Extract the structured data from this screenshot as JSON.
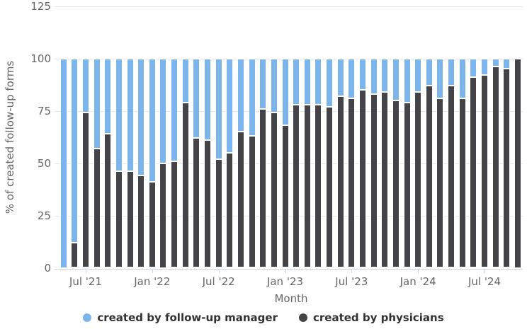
{
  "chart": {
    "y_axis_title": "% of created follow-up forms",
    "x_axis_title": "Month",
    "legend": [
      {
        "label": "created by follow-up manager",
        "color": "#7cb5ec"
      },
      {
        "label": "created by physicians",
        "color": "#434348"
      }
    ],
    "colors": {
      "manager_blue": "#7cb5ec",
      "physicians_dark": "#434348",
      "gridline": "#e6e6e6",
      "axis_line": "#ccd6eb",
      "axis_label": "#666666",
      "legend_text": "#333333"
    }
  },
  "chart_data": {
    "type": "bar",
    "stacked": true,
    "title": "",
    "xlabel": "Month",
    "ylabel": "% of created follow-up forms",
    "ylim": [
      0,
      125
    ],
    "yticks": [
      0,
      25,
      50,
      75,
      100,
      125
    ],
    "grid": true,
    "legend_position": "bottom",
    "categories": [
      "May '21",
      "Jun '21",
      "Jul '21",
      "Aug '21",
      "Sep '21",
      "Oct '21",
      "Nov '21",
      "Dec '21",
      "Jan '22",
      "Feb '22",
      "Mar '22",
      "Apr '22",
      "May '22",
      "Jun '22",
      "Jul '22",
      "Aug '22",
      "Sep '22",
      "Oct '22",
      "Nov '22",
      "Dec '22",
      "Jan '23",
      "Feb '23",
      "Mar '23",
      "Apr '23",
      "May '23",
      "Jun '23",
      "Jul '23",
      "Aug '23",
      "Sep '23",
      "Oct '23",
      "Nov '23",
      "Dec '23",
      "Jan '24",
      "Feb '24",
      "Mar '24",
      "Apr '24",
      "May '24",
      "Jun '24",
      "Jul '24",
      "Aug '24",
      "Sep '24",
      "Oct '24"
    ],
    "x_ticks": [
      {
        "index": 2,
        "label": "Jul '21"
      },
      {
        "index": 8,
        "label": "Jan '22"
      },
      {
        "index": 14,
        "label": "Jul '22"
      },
      {
        "index": 20,
        "label": "Jan '23"
      },
      {
        "index": 26,
        "label": "Jul '23"
      },
      {
        "index": 32,
        "label": "Jan '24"
      },
      {
        "index": 38,
        "label": "Jul '24"
      }
    ],
    "series": [
      {
        "name": "created by physicians",
        "color": "#434348",
        "values": [
          0,
          12,
          74,
          57,
          64,
          46,
          46,
          44,
          41,
          50,
          51,
          79,
          62,
          61,
          52,
          55,
          65,
          63,
          76,
          74,
          68,
          78,
          78,
          78,
          77,
          82,
          81,
          85,
          83,
          84,
          80,
          79,
          84,
          87,
          81,
          87,
          81,
          91,
          92,
          96,
          95,
          100
        ]
      },
      {
        "name": "created by follow-up manager",
        "color": "#7cb5ec",
        "values": [
          100,
          88,
          26,
          43,
          36,
          54,
          54,
          56,
          59,
          50,
          49,
          21,
          38,
          39,
          48,
          45,
          35,
          37,
          24,
          26,
          32,
          22,
          22,
          22,
          23,
          18,
          19,
          15,
          17,
          16,
          20,
          21,
          16,
          13,
          19,
          13,
          19,
          9,
          8,
          4,
          5,
          0
        ]
      }
    ]
  }
}
